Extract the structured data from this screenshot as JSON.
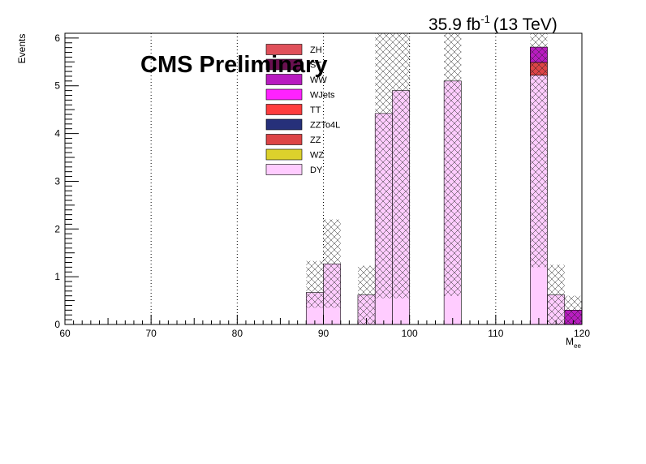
{
  "chart_data": {
    "type": "bar",
    "stacked": true,
    "title": "CMS Preliminary",
    "lumi_label": {
      "value": "35.9 fb",
      "exponent": "-1",
      "energy": "(13 TeV)"
    },
    "xlabel": {
      "main": "M",
      "sub": "ee"
    },
    "ylabel": "Events",
    "xlim": [
      60,
      120
    ],
    "ylim": [
      0,
      6.1
    ],
    "bin_width": 2,
    "x_ticks": [
      60,
      70,
      80,
      90,
      100,
      110,
      120
    ],
    "y_ticks": [
      0,
      1,
      2,
      3,
      4,
      5,
      6
    ],
    "vertical_grid": "dotted",
    "legend_placement": "top-center",
    "legend": [
      {
        "name": "ZH",
        "color": "#e0505a"
      },
      {
        "name": "ST",
        "color": "#6a1050"
      },
      {
        "name": "WW",
        "color": "#b81cc0"
      },
      {
        "name": "WJets",
        "color": "#ff22ff"
      },
      {
        "name": "TT",
        "color": "#ff3d3d"
      },
      {
        "name": "ZZTo4L",
        "color": "#26307a"
      },
      {
        "name": "ZZ",
        "color": "#dd4446"
      },
      {
        "name": "WZ",
        "color": "#dcd12c"
      },
      {
        "name": "DY",
        "color": "#ffccff"
      }
    ],
    "bins": [
      {
        "x": [
          88,
          90
        ],
        "stack": [
          {
            "name": "DY",
            "value": 0.67
          }
        ],
        "unc": [
          0.35,
          1.33
        ]
      },
      {
        "x": [
          90,
          92
        ],
        "stack": [
          {
            "name": "DY",
            "value": 1.27
          }
        ],
        "unc": [
          0.35,
          2.2
        ]
      },
      {
        "x": [
          94,
          96
        ],
        "stack": [
          {
            "name": "DY",
            "value": 0.62
          }
        ],
        "unc": [
          0.0,
          1.23
        ]
      },
      {
        "x": [
          96,
          98
        ],
        "stack": [
          {
            "name": "DY",
            "value": 4.42
          }
        ],
        "unc": [
          0.55,
          6.1
        ]
      },
      {
        "x": [
          98,
          100
        ],
        "stack": [
          {
            "name": "DY",
            "value": 4.9
          }
        ],
        "unc": [
          0.55,
          6.1
        ]
      },
      {
        "x": [
          104,
          106
        ],
        "stack": [
          {
            "name": "DY",
            "value": 5.1
          }
        ],
        "unc": [
          0.6,
          6.1
        ]
      },
      {
        "x": [
          114,
          116
        ],
        "stack": [
          {
            "name": "DY",
            "value": 5.22
          },
          {
            "name": "ZZ",
            "value": 0.27
          },
          {
            "name": "WW",
            "value": 0.32
          }
        ],
        "unc": [
          1.2,
          6.1
        ]
      },
      {
        "x": [
          116,
          118
        ],
        "stack": [
          {
            "name": "DY",
            "value": 0.62
          }
        ],
        "unc": [
          0.0,
          1.25
        ]
      },
      {
        "x": [
          118,
          120
        ],
        "stack": [
          {
            "name": "WW",
            "value": 0.3
          }
        ],
        "unc": [
          0.0,
          0.6
        ]
      }
    ]
  }
}
